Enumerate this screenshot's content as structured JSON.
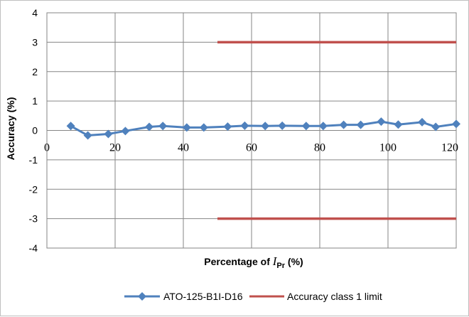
{
  "chart_data": {
    "type": "line",
    "title": "",
    "xlabel_prefix": "Percentage of ",
    "xlabel_var": "I",
    "xlabel_sub": "Pr",
    "xlabel_suffix": " (%)",
    "ylabel": "Accuracy (%)",
    "xlim": [
      0,
      120
    ],
    "ylim": [
      -4,
      4
    ],
    "x_ticks": [
      0,
      20,
      40,
      60,
      80,
      100,
      120
    ],
    "y_ticks": [
      4,
      3,
      2,
      1,
      0,
      -1,
      -2,
      -3,
      -4
    ],
    "grid": true,
    "legend_position": "bottom",
    "series": [
      {
        "name": "ATO-125-B1I-D16",
        "color": "#4f81bd",
        "marker": "diamond",
        "x": [
          7,
          12,
          18,
          23,
          30,
          34,
          41,
          46,
          53,
          58,
          64,
          69,
          76,
          81,
          87,
          92,
          98,
          103,
          110,
          114,
          120
        ],
        "y": [
          0.15,
          -0.17,
          -0.12,
          -0.02,
          0.12,
          0.15,
          0.1,
          0.1,
          0.13,
          0.16,
          0.15,
          0.16,
          0.15,
          0.15,
          0.19,
          0.19,
          0.3,
          0.2,
          0.28,
          0.12,
          0.22
        ]
      },
      {
        "name": "Accuracy class 1 limit",
        "color": "#c0504d",
        "segments": [
          {
            "x": [
              50,
              120
            ],
            "y": [
              3,
              3
            ]
          },
          {
            "x": [
              50,
              120
            ],
            "y": [
              -3,
              -3
            ]
          }
        ]
      }
    ]
  }
}
